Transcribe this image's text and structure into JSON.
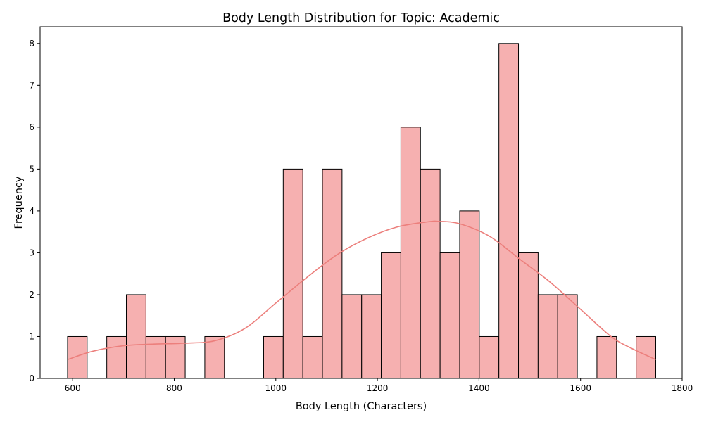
{
  "chart_data": {
    "type": "bar",
    "subtype": "histogram",
    "title": "Body Length Distribution for Topic: Academic",
    "xlabel": "Body Length (Characters)",
    "ylabel": "Frequency",
    "xlim": [
      536,
      1800
    ],
    "ylim": [
      0,
      8.4
    ],
    "xticks": [
      600,
      800,
      1000,
      1200,
      1400,
      1600,
      1800
    ],
    "yticks": [
      0,
      1,
      2,
      3,
      4,
      5,
      6,
      7,
      8
    ],
    "grid": false,
    "legend": "none",
    "bin_start": 590,
    "bin_width": 38.6,
    "bin_counts": [
      1,
      0,
      1,
      2,
      1,
      1,
      0,
      1,
      0,
      0,
      1,
      5,
      1,
      5,
      2,
      2,
      3,
      6,
      5,
      3,
      4,
      1,
      8,
      3,
      2,
      2,
      0,
      1,
      0,
      1
    ],
    "kde": {
      "x": [
        590,
        640,
        700,
        760,
        820,
        880,
        940,
        1000,
        1060,
        1120,
        1180,
        1240,
        1300,
        1320,
        1360,
        1420,
        1480,
        1540,
        1600,
        1660,
        1700,
        1748
      ],
      "y": [
        0.45,
        0.65,
        0.78,
        0.82,
        0.84,
        0.9,
        1.2,
        1.8,
        2.4,
        2.95,
        3.35,
        3.62,
        3.74,
        3.75,
        3.7,
        3.4,
        2.85,
        2.3,
        1.65,
        1.0,
        0.72,
        0.45
      ]
    },
    "colors": {
      "bar_fill": "#f6b0b0",
      "bar_edge": "#000000",
      "kde_line": "#ec7f7c"
    }
  }
}
